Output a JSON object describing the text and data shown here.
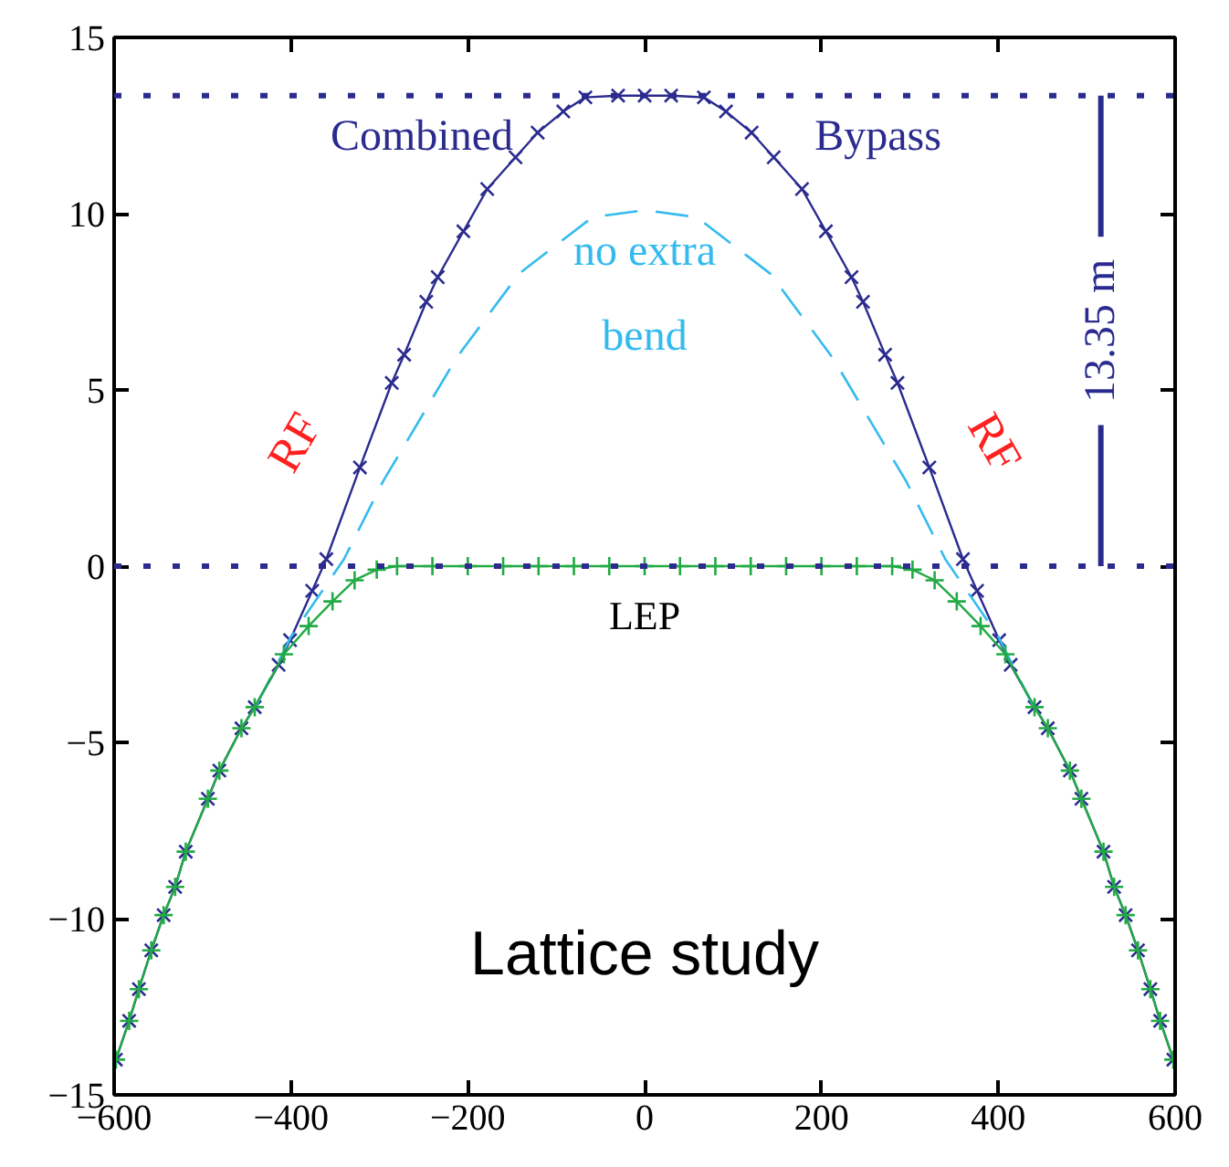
{
  "chart_data": {
    "type": "line",
    "xlim": [
      -600,
      600
    ],
    "ylim": [
      -15,
      15
    ],
    "xticks": [
      -600,
      -400,
      -200,
      0,
      200,
      400,
      600
    ],
    "yticks": [
      -15,
      -10,
      -5,
      0,
      5,
      10,
      15
    ],
    "grid": false,
    "series": [
      {
        "color": "#2b2b8f",
        "marker": "cross",
        "line_style": "solid",
        "x": [
          -598,
          -583,
          -572,
          -558,
          -544,
          -531,
          -519,
          -494,
          -481,
          -456,
          -441,
          -414,
          -401,
          -376,
          -360,
          -322,
          -286,
          -272,
          -247,
          -234,
          -205,
          -178,
          -146,
          -121,
          -92,
          -67,
          -30,
          0,
          30,
          67,
          92,
          121,
          146,
          178,
          205,
          234,
          247,
          272,
          286,
          322,
          360,
          376,
          401,
          414,
          441,
          456,
          481,
          494,
          519,
          531,
          544,
          558,
          572,
          583,
          598
        ],
        "values": [
          -14.0,
          -12.9,
          -12.0,
          -10.9,
          -9.9,
          -9.1,
          -8.1,
          -6.6,
          -5.8,
          -4.6,
          -4.0,
          -2.8,
          -2.1,
          -0.7,
          0.2,
          2.8,
          5.2,
          6.0,
          7.5,
          8.2,
          9.5,
          10.7,
          11.6,
          12.3,
          12.9,
          13.3,
          13.35,
          13.35,
          13.35,
          13.3,
          12.9,
          12.3,
          11.6,
          10.7,
          9.5,
          8.2,
          7.5,
          6.0,
          5.2,
          2.8,
          0.2,
          -0.7,
          -2.1,
          -2.8,
          -4.0,
          -4.6,
          -5.8,
          -6.6,
          -8.1,
          -9.1,
          -9.9,
          -10.9,
          -12.0,
          -12.9,
          -14.0
        ]
      },
      {
        "color": "#33bbee",
        "marker": "none",
        "line_style": "dashed",
        "x": [
          -440,
          -400,
          -340,
          -296,
          -213,
          -142,
          -59,
          0,
          59,
          142,
          213,
          296,
          340,
          400,
          440
        ],
        "values": [
          -4.0,
          -2.0,
          0.2,
          2.4,
          5.9,
          8.3,
          9.9,
          10.1,
          9.9,
          8.3,
          5.9,
          2.4,
          0.2,
          -2.0,
          -4.0
        ]
      },
      {
        "color": "#22aa44",
        "marker": "plus",
        "line_style": "solid",
        "x": [
          -598,
          -583,
          -572,
          -558,
          -544,
          -531,
          -519,
          -494,
          -481,
          -456,
          -441,
          -408,
          -380,
          -353,
          -328,
          -303,
          -280,
          -240,
          -200,
          -160,
          -120,
          -80,
          -40,
          0,
          40,
          80,
          120,
          160,
          200,
          240,
          280,
          303,
          328,
          353,
          380,
          408,
          441,
          456,
          481,
          494,
          519,
          531,
          544,
          558,
          572,
          583,
          598
        ],
        "values": [
          -14.0,
          -12.9,
          -12.0,
          -10.9,
          -9.9,
          -9.1,
          -8.1,
          -6.6,
          -5.8,
          -4.6,
          -4.0,
          -2.5,
          -1.7,
          -1.0,
          -0.4,
          -0.1,
          0,
          0,
          0,
          0,
          0,
          0,
          0,
          0,
          0,
          0,
          0,
          0,
          0,
          0,
          0,
          -0.1,
          -0.4,
          -1.0,
          -1.7,
          -2.5,
          -4.0,
          -4.6,
          -5.8,
          -6.6,
          -8.1,
          -9.1,
          -9.9,
          -10.9,
          -12.0,
          -12.9,
          -14.0
        ]
      }
    ],
    "ref_lines": [
      {
        "axis": "y",
        "value": 13.35,
        "label": "13.35 m",
        "color": "#2b2b8f",
        "line_style": "dotted"
      },
      {
        "axis": "y",
        "value": 0,
        "label": null,
        "color": "#2b2b8f",
        "line_style": "dotted"
      }
    ],
    "annotations": [
      "Combined",
      "Bypass",
      "no extra",
      "bend",
      "RF",
      "RF",
      "LEP",
      "Lattice study"
    ]
  }
}
